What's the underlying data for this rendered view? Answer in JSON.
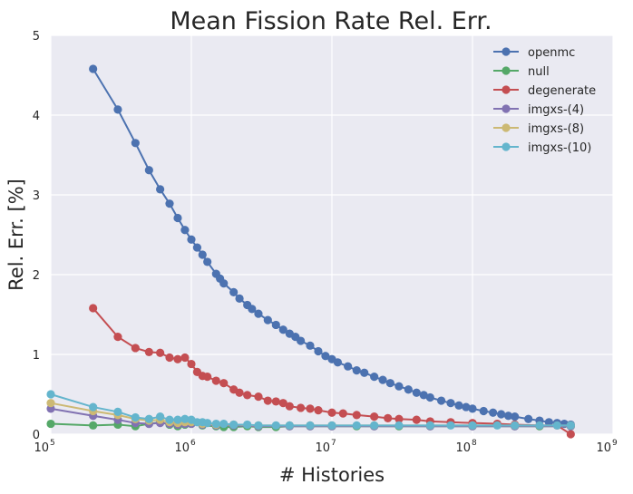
{
  "chart_data": {
    "type": "line",
    "title": "Mean Fission Rate Rel. Err.",
    "xlabel": "# Histories",
    "ylabel": "Rel. Err. [%]",
    "xscale": "log",
    "xlim": [
      100000,
      1000000000
    ],
    "ylim": [
      0,
      5
    ],
    "x_ticks": [
      {
        "value": 100000,
        "base": "10",
        "exp": "5"
      },
      {
        "value": 1000000,
        "base": "10",
        "exp": "6"
      },
      {
        "value": 10000000,
        "base": "10",
        "exp": "7"
      },
      {
        "value": 100000000,
        "base": "10",
        "exp": "8"
      },
      {
        "value": 1000000000,
        "base": "10",
        "exp": "9"
      }
    ],
    "y_ticks": [
      "0",
      "1",
      "2",
      "3",
      "4",
      "5"
    ],
    "grid": true,
    "legend": "top-right",
    "series": [
      {
        "name": "openmc",
        "color": "#4c72b0",
        "points": [
          [
            200000,
            4.58
          ],
          [
            300000,
            4.07
          ],
          [
            400000,
            3.65
          ],
          [
            500000,
            3.31
          ],
          [
            600000,
            3.07
          ],
          [
            700000,
            2.89
          ],
          [
            800000,
            2.71
          ],
          [
            900000,
            2.56
          ],
          [
            1000000,
            2.44
          ],
          [
            1100000,
            2.34
          ],
          [
            1200000,
            2.25
          ],
          [
            1300000,
            2.16
          ],
          [
            1500000,
            2.01
          ],
          [
            1600000,
            1.95
          ],
          [
            1700000,
            1.89
          ],
          [
            2000000,
            1.78
          ],
          [
            2200000,
            1.7
          ],
          [
            2500000,
            1.62
          ],
          [
            2700000,
            1.57
          ],
          [
            3000000,
            1.51
          ],
          [
            3500000,
            1.43
          ],
          [
            4000000,
            1.37
          ],
          [
            4500000,
            1.31
          ],
          [
            5000000,
            1.26
          ],
          [
            5500000,
            1.22
          ],
          [
            6000000,
            1.17
          ],
          [
            7000000,
            1.11
          ],
          [
            8000000,
            1.04
          ],
          [
            9000000,
            0.98
          ],
          [
            10000000,
            0.94
          ],
          [
            11000000,
            0.9
          ],
          [
            13000000,
            0.85
          ],
          [
            15000000,
            0.8
          ],
          [
            17000000,
            0.77
          ],
          [
            20000000,
            0.72
          ],
          [
            23000000,
            0.68
          ],
          [
            26000000,
            0.64
          ],
          [
            30000000,
            0.6
          ],
          [
            35000000,
            0.56
          ],
          [
            40000000,
            0.52
          ],
          [
            45000000,
            0.49
          ],
          [
            50000000,
            0.46
          ],
          [
            60000000,
            0.42
          ],
          [
            70000000,
            0.39
          ],
          [
            80000000,
            0.36
          ],
          [
            90000000,
            0.34
          ],
          [
            100000000,
            0.32
          ],
          [
            120000000,
            0.29
          ],
          [
            140000000,
            0.27
          ],
          [
            160000000,
            0.25
          ],
          [
            180000000,
            0.23
          ],
          [
            200000000,
            0.22
          ],
          [
            250000000,
            0.19
          ],
          [
            300000000,
            0.17
          ],
          [
            350000000,
            0.15
          ],
          [
            400000000,
            0.14
          ],
          [
            450000000,
            0.13
          ],
          [
            500000000,
            0.12
          ]
        ]
      },
      {
        "name": "null",
        "color": "#55a868",
        "points": [
          [
            100000,
            0.13
          ],
          [
            200000,
            0.11
          ],
          [
            300000,
            0.12
          ],
          [
            400000,
            0.1
          ],
          [
            500000,
            0.13
          ],
          [
            600000,
            0.15
          ],
          [
            700000,
            0.12
          ],
          [
            800000,
            0.1
          ],
          [
            900000,
            0.12
          ],
          [
            1000000,
            0.13
          ],
          [
            1200000,
            0.11
          ],
          [
            1500000,
            0.1
          ],
          [
            1700000,
            0.09
          ],
          [
            2000000,
            0.09
          ],
          [
            2500000,
            0.1
          ],
          [
            3000000,
            0.09
          ],
          [
            4000000,
            0.09
          ],
          [
            5000000,
            0.1
          ],
          [
            7000000,
            0.1
          ],
          [
            10000000,
            0.1
          ],
          [
            15000000,
            0.1
          ],
          [
            20000000,
            0.1
          ],
          [
            30000000,
            0.1
          ],
          [
            50000000,
            0.1
          ],
          [
            100000000,
            0.1
          ],
          [
            200000000,
            0.1
          ],
          [
            300000000,
            0.1
          ],
          [
            500000000,
            0.1
          ]
        ]
      },
      {
        "name": "degenerate",
        "color": "#c44e52",
        "points": [
          [
            200000,
            1.58
          ],
          [
            300000,
            1.22
          ],
          [
            400000,
            1.08
          ],
          [
            500000,
            1.03
          ],
          [
            600000,
            1.02
          ],
          [
            700000,
            0.96
          ],
          [
            800000,
            0.94
          ],
          [
            900000,
            0.96
          ],
          [
            1000000,
            0.88
          ],
          [
            1100000,
            0.78
          ],
          [
            1200000,
            0.73
          ],
          [
            1300000,
            0.72
          ],
          [
            1500000,
            0.67
          ],
          [
            1700000,
            0.64
          ],
          [
            2000000,
            0.56
          ],
          [
            2200000,
            0.52
          ],
          [
            2500000,
            0.49
          ],
          [
            3000000,
            0.47
          ],
          [
            3500000,
            0.42
          ],
          [
            4000000,
            0.41
          ],
          [
            4500000,
            0.39
          ],
          [
            5000000,
            0.35
          ],
          [
            6000000,
            0.33
          ],
          [
            7000000,
            0.32
          ],
          [
            8000000,
            0.3
          ],
          [
            10000000,
            0.27
          ],
          [
            12000000,
            0.26
          ],
          [
            15000000,
            0.24
          ],
          [
            20000000,
            0.22
          ],
          [
            25000000,
            0.2
          ],
          [
            30000000,
            0.19
          ],
          [
            40000000,
            0.18
          ],
          [
            50000000,
            0.16
          ],
          [
            70000000,
            0.15
          ],
          [
            100000000,
            0.14
          ],
          [
            150000000,
            0.13
          ],
          [
            200000000,
            0.12
          ],
          [
            300000000,
            0.11
          ],
          [
            400000000,
            0.11
          ],
          [
            500000000,
            0.0
          ]
        ]
      },
      {
        "name": "imgxs-(4)",
        "color": "#8172b2",
        "points": [
          [
            100000,
            0.32
          ],
          [
            200000,
            0.23
          ],
          [
            300000,
            0.18
          ],
          [
            400000,
            0.14
          ],
          [
            500000,
            0.13
          ],
          [
            600000,
            0.14
          ],
          [
            700000,
            0.13
          ],
          [
            800000,
            0.12
          ],
          [
            900000,
            0.13
          ],
          [
            1000000,
            0.13
          ],
          [
            1200000,
            0.12
          ],
          [
            1500000,
            0.11
          ],
          [
            2000000,
            0.11
          ],
          [
            3000000,
            0.1
          ],
          [
            5000000,
            0.1
          ],
          [
            7000000,
            0.1
          ],
          [
            10000000,
            0.1
          ],
          [
            20000000,
            0.1
          ],
          [
            50000000,
            0.1
          ],
          [
            100000000,
            0.1
          ],
          [
            200000000,
            0.1
          ],
          [
            500000000,
            0.1
          ]
        ]
      },
      {
        "name": "imgxs-(8)",
        "color": "#ccb974",
        "points": [
          [
            100000,
            0.39
          ],
          [
            200000,
            0.29
          ],
          [
            300000,
            0.24
          ],
          [
            400000,
            0.19
          ],
          [
            500000,
            0.17
          ],
          [
            600000,
            0.18
          ],
          [
            700000,
            0.15
          ],
          [
            800000,
            0.14
          ],
          [
            900000,
            0.15
          ],
          [
            1000000,
            0.15
          ],
          [
            1200000,
            0.13
          ],
          [
            1500000,
            0.12
          ],
          [
            2000000,
            0.12
          ],
          [
            3000000,
            0.11
          ],
          [
            5000000,
            0.11
          ],
          [
            7000000,
            0.11
          ],
          [
            10000000,
            0.11
          ],
          [
            20000000,
            0.11
          ],
          [
            50000000,
            0.11
          ],
          [
            100000000,
            0.11
          ],
          [
            200000000,
            0.11
          ],
          [
            500000000,
            0.11
          ]
        ]
      },
      {
        "name": "imgxs-(10)",
        "color": "#64b5cd",
        "points": [
          [
            100000,
            0.5
          ],
          [
            200000,
            0.34
          ],
          [
            300000,
            0.28
          ],
          [
            400000,
            0.21
          ],
          [
            500000,
            0.19
          ],
          [
            600000,
            0.22
          ],
          [
            700000,
            0.18
          ],
          [
            800000,
            0.18
          ],
          [
            900000,
            0.19
          ],
          [
            1000000,
            0.18
          ],
          [
            1100000,
            0.15
          ],
          [
            1200000,
            0.15
          ],
          [
            1300000,
            0.14
          ],
          [
            1500000,
            0.13
          ],
          [
            1700000,
            0.13
          ],
          [
            2000000,
            0.12
          ],
          [
            2500000,
            0.12
          ],
          [
            3000000,
            0.11
          ],
          [
            4000000,
            0.11
          ],
          [
            5000000,
            0.11
          ],
          [
            7000000,
            0.11
          ],
          [
            10000000,
            0.11
          ],
          [
            15000000,
            0.11
          ],
          [
            20000000,
            0.11
          ],
          [
            30000000,
            0.11
          ],
          [
            50000000,
            0.11
          ],
          [
            70000000,
            0.11
          ],
          [
            100000000,
            0.11
          ],
          [
            150000000,
            0.11
          ],
          [
            200000000,
            0.11
          ],
          [
            300000000,
            0.11
          ],
          [
            400000000,
            0.11
          ],
          [
            500000000,
            0.11
          ]
        ]
      }
    ]
  }
}
